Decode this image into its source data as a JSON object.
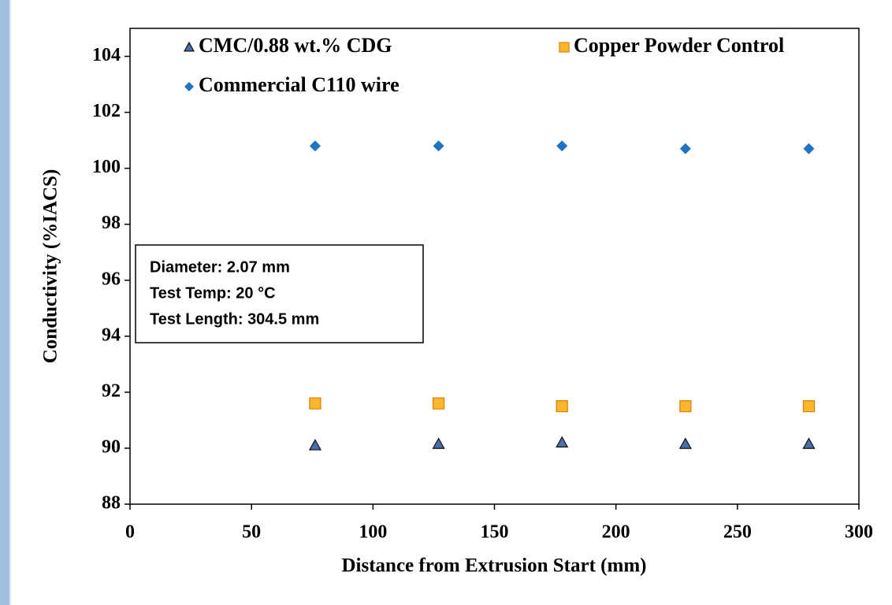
{
  "chart_data": {
    "type": "scatter",
    "xlabel": "Distance from Extrusion Start (mm)",
    "ylabel": "Conductivity (%IACS)",
    "xlim": [
      0,
      300
    ],
    "xticks": [
      0,
      50,
      100,
      150,
      200,
      250,
      300
    ],
    "ylim": [
      88,
      105
    ],
    "yticks": [
      88,
      90,
      92,
      94,
      96,
      98,
      100,
      102,
      104
    ],
    "series": [
      {
        "name": "CMC/0.88 wt.% CDG",
        "color": "#4a6fb0",
        "marker": "triangle",
        "x": [
          76.2,
          127,
          177.8,
          228.6,
          279.4
        ],
        "values": [
          90.1,
          90.15,
          90.2,
          90.15,
          90.15
        ]
      },
      {
        "name": "Copper Powder Control",
        "color": "#ffb62c",
        "marker": "square",
        "x": [
          76.2,
          127,
          177.8,
          228.6,
          279.4
        ],
        "values": [
          91.6,
          91.6,
          91.5,
          91.5,
          91.5
        ]
      },
      {
        "name": "Commercial C110 wire",
        "color": "#1f74c4",
        "marker": "diamond",
        "x": [
          76.2,
          127,
          177.8,
          228.6,
          279.4
        ],
        "values": [
          100.8,
          100.8,
          100.8,
          100.7,
          100.7
        ]
      }
    ],
    "annotations": [
      "Diameter: 2.07 mm",
      "Test Temp: 20 °C",
      "Test Length: 304.5 mm"
    ]
  }
}
